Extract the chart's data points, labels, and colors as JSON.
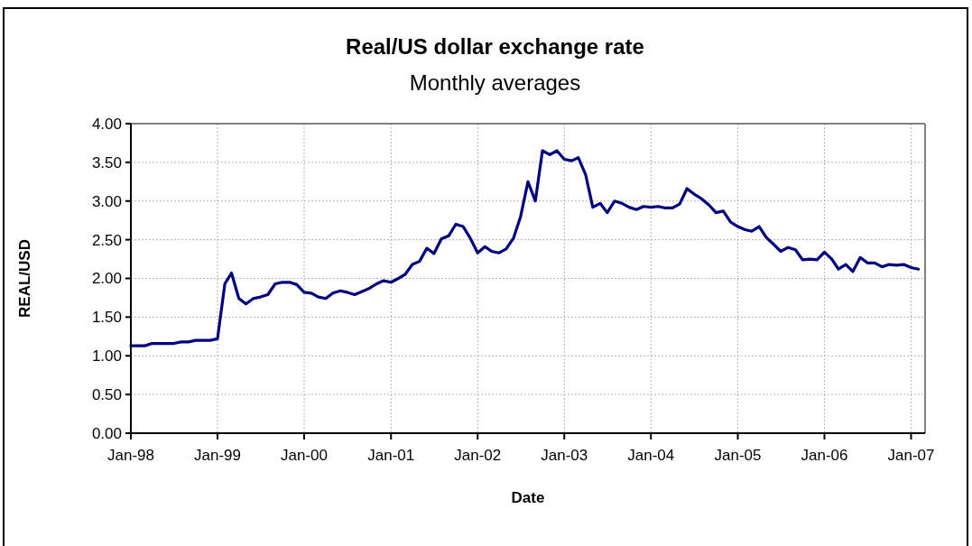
{
  "chart_data": {
    "type": "line",
    "title": "Real/US dollar exchange rate",
    "subtitle": "Monthly averages",
    "xlabel": "Date",
    "ylabel": "REAL/USD",
    "x": [
      "1998-01",
      "1998-02",
      "1998-03",
      "1998-04",
      "1998-05",
      "1998-06",
      "1998-07",
      "1998-08",
      "1998-09",
      "1998-10",
      "1998-11",
      "1998-12",
      "1999-01",
      "1999-02",
      "1999-03",
      "1999-04",
      "1999-05",
      "1999-06",
      "1999-07",
      "1999-08",
      "1999-09",
      "1999-10",
      "1999-11",
      "1999-12",
      "2000-01",
      "2000-02",
      "2000-03",
      "2000-04",
      "2000-05",
      "2000-06",
      "2000-07",
      "2000-08",
      "2000-09",
      "2000-10",
      "2000-11",
      "2000-12",
      "2001-01",
      "2001-02",
      "2001-03",
      "2001-04",
      "2001-05",
      "2001-06",
      "2001-07",
      "2001-08",
      "2001-09",
      "2001-10",
      "2001-11",
      "2001-12",
      "2002-01",
      "2002-02",
      "2002-03",
      "2002-04",
      "2002-05",
      "2002-06",
      "2002-07",
      "2002-08",
      "2002-09",
      "2002-10",
      "2002-11",
      "2002-12",
      "2003-01",
      "2003-02",
      "2003-03",
      "2003-04",
      "2003-05",
      "2003-06",
      "2003-07",
      "2003-08",
      "2003-09",
      "2003-10",
      "2003-11",
      "2003-12",
      "2004-01",
      "2004-02",
      "2004-03",
      "2004-04",
      "2004-05",
      "2004-06",
      "2004-07",
      "2004-08",
      "2004-09",
      "2004-10",
      "2004-11",
      "2004-12",
      "2005-01",
      "2005-02",
      "2005-03",
      "2005-04",
      "2005-05",
      "2005-06",
      "2005-07",
      "2005-08",
      "2005-09",
      "2005-10",
      "2005-11",
      "2005-12",
      "2006-01",
      "2006-02",
      "2006-03",
      "2006-04",
      "2006-05",
      "2006-06",
      "2006-07",
      "2006-08",
      "2006-09",
      "2006-10",
      "2006-11",
      "2006-12",
      "2007-01",
      "2007-02"
    ],
    "values": [
      1.13,
      1.13,
      1.13,
      1.16,
      1.16,
      1.16,
      1.16,
      1.18,
      1.18,
      1.2,
      1.2,
      1.2,
      1.22,
      1.93,
      2.07,
      1.74,
      1.67,
      1.74,
      1.76,
      1.79,
      1.93,
      1.95,
      1.95,
      1.92,
      1.82,
      1.81,
      1.76,
      1.74,
      1.81,
      1.84,
      1.82,
      1.79,
      1.83,
      1.87,
      1.93,
      1.97,
      1.95,
      2.0,
      2.05,
      2.18,
      2.22,
      2.39,
      2.32,
      2.51,
      2.55,
      2.7,
      2.67,
      2.52,
      2.33,
      2.41,
      2.35,
      2.33,
      2.38,
      2.52,
      2.8,
      3.25,
      3.0,
      3.65,
      3.6,
      3.65,
      3.54,
      3.52,
      3.56,
      3.34,
      2.92,
      2.97,
      2.85,
      3.0,
      2.97,
      2.92,
      2.89,
      2.93,
      2.92,
      2.93,
      2.91,
      2.91,
      2.96,
      3.16,
      3.09,
      3.03,
      2.95,
      2.85,
      2.87,
      2.73,
      2.67,
      2.63,
      2.61,
      2.67,
      2.53,
      2.44,
      2.35,
      2.4,
      2.37,
      2.24,
      2.25,
      2.24,
      2.34,
      2.25,
      2.12,
      2.18,
      2.09,
      2.27,
      2.2,
      2.2,
      2.15,
      2.18,
      2.17,
      2.18,
      2.14,
      2.12
    ],
    "color": "#000080",
    "line_style": "solid",
    "grid": true,
    "xlim": [
      "1998-01",
      "2007-03"
    ],
    "xticks": [
      {
        "value": "1998-01",
        "label": "Jan-98"
      },
      {
        "value": "1999-01",
        "label": "Jan-99"
      },
      {
        "value": "2000-01",
        "label": "Jan-00"
      },
      {
        "value": "2001-01",
        "label": "Jan-01"
      },
      {
        "value": "2002-01",
        "label": "Jan-02"
      },
      {
        "value": "2003-01",
        "label": "Jan-03"
      },
      {
        "value": "2004-01",
        "label": "Jan-04"
      },
      {
        "value": "2005-01",
        "label": "Jan-05"
      },
      {
        "value": "2006-01",
        "label": "Jan-06"
      },
      {
        "value": "2007-01",
        "label": "Jan-07"
      }
    ],
    "ylim": [
      0,
      4
    ],
    "yticks": [
      {
        "value": 0,
        "label": "0.00"
      },
      {
        "value": 0.5,
        "label": "0.50"
      },
      {
        "value": 1,
        "label": "1.00"
      },
      {
        "value": 1.5,
        "label": "1.50"
      },
      {
        "value": 2,
        "label": "2.00"
      },
      {
        "value": 2.5,
        "label": "2.50"
      },
      {
        "value": 3,
        "label": "3.00"
      },
      {
        "value": 3.5,
        "label": "3.50"
      },
      {
        "value": 4,
        "label": "4.00"
      }
    ]
  }
}
